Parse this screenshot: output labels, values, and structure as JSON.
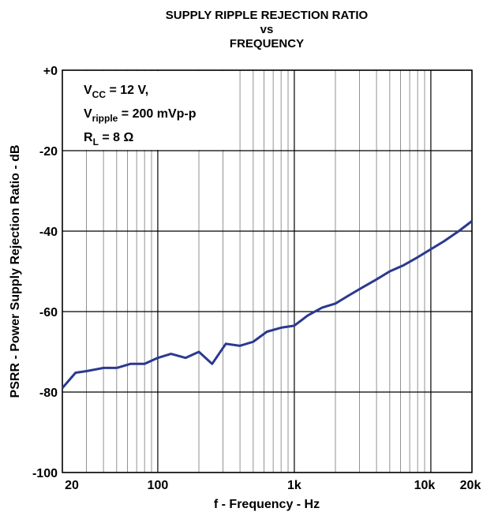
{
  "chart_data": {
    "type": "line",
    "title": [
      "SUPPLY RIPPLE REJECTION RATIO",
      "vs",
      "FREQUENCY"
    ],
    "xlabel": "f - Frequency - Hz",
    "ylabel": "PSRR - Power Supply Rejection Ratio - dB",
    "annotations": [
      {
        "main": "V",
        "sub": "CC",
        "rest": " = 12 V,"
      },
      {
        "main": "V",
        "sub": "ripple",
        "rest": " = 200 mVp-p"
      },
      {
        "main": "R",
        "sub": "L",
        "rest": " = 8 Ω"
      }
    ],
    "xscale": "log",
    "xlim": [
      20,
      20000
    ],
    "xticks": [
      20,
      100,
      {
        "value": 1000,
        "label": "1k"
      },
      {
        "value": 10000,
        "label": "10k"
      },
      {
        "value": 20000,
        "label": "20k"
      }
    ],
    "ylim": [
      -100,
      0
    ],
    "yticks": [
      {
        "value": 0,
        "label": "+0"
      },
      -20,
      -40,
      -60,
      -80,
      -100
    ],
    "grid": true,
    "series": [
      {
        "color": "#2b3990",
        "x": [
          20,
          25,
          30,
          40,
          50,
          63,
          80,
          100,
          125,
          160,
          200,
          250,
          315,
          400,
          500,
          630,
          800,
          1000,
          1250,
          1600,
          2000,
          2500,
          3150,
          4000,
          5000,
          6300,
          8000,
          10000,
          12500,
          16000,
          20000
        ],
        "values": [
          -79,
          -75.2,
          -74.8,
          -74,
          -74,
          -73,
          -73,
          -71.5,
          -70.5,
          -71.5,
          -70,
          -73,
          -68,
          -68.5,
          -67.5,
          -65,
          -64,
          -63.5,
          -61,
          -59,
          -58,
          -56,
          -54,
          -52,
          -50,
          -48.5,
          -46.5,
          -44.5,
          -42.5,
          -40,
          -37.5
        ]
      }
    ]
  }
}
